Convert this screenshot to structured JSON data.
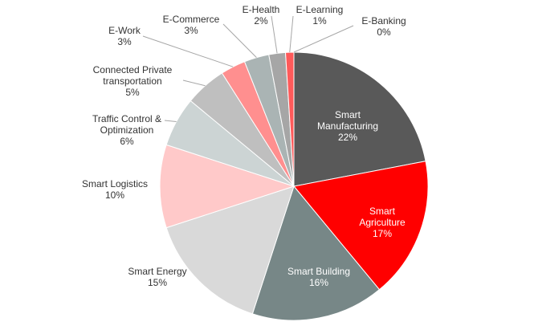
{
  "chart_data": {
    "type": "pie",
    "categories": [
      "Smart Manufacturing",
      "Smart Agriculture",
      "Smart Building",
      "Smart Energy",
      "Smart Logistics",
      "Traffic Control & Optimization",
      "Connected Private transportation",
      "E-Work",
      "E-Commerce",
      "E-Health",
      "E-Learning",
      "E-Banking"
    ],
    "values": [
      22,
      17,
      16,
      15,
      10,
      6,
      5,
      3,
      3,
      2,
      1,
      0
    ],
    "value_labels": [
      "22%",
      "17%",
      "16%",
      "15%",
      "10%",
      "6%",
      "5%",
      "3%",
      "3%",
      "2%",
      "1%",
      "0%"
    ],
    "colors": [
      "#595959",
      "#ff0000",
      "#778787",
      "#d9d9d9",
      "#ffc9c9",
      "#ccd4d4",
      "#bfbfbf",
      "#ff8f8f",
      "#aab4b4",
      "#a6a6a6",
      "#ff5a5a",
      "#c00000"
    ]
  }
}
